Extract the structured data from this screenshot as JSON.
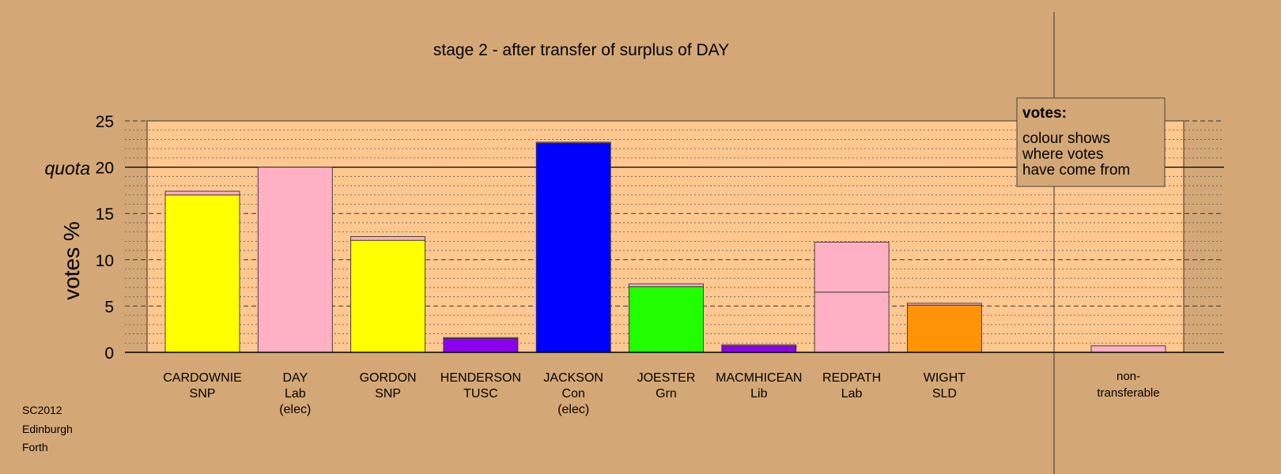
{
  "chart_data": {
    "type": "bar",
    "title": "stage 2 - after transfer of surplus of DAY",
    "ylabel": "votes %",
    "ylim": [
      0,
      25
    ],
    "yticks": [
      0,
      5,
      10,
      15,
      20,
      25
    ],
    "quota": {
      "label": "quota",
      "value": 20
    },
    "grid": true,
    "legend": {
      "title": "votes:",
      "lines": [
        "colour shows",
        "where votes",
        "have come from"
      ],
      "placement": "top-right"
    },
    "candidates": [
      {
        "name": "CARDOWNIE",
        "party": "SNP",
        "note": "",
        "segments": [
          {
            "value": 17.0,
            "color": "#ffff00"
          },
          {
            "value": 0.4,
            "color": "#ffb0c4"
          }
        ]
      },
      {
        "name": "DAY",
        "party": "Lab",
        "note": "(elec)",
        "segments": [
          {
            "value": 20.0,
            "color": "#ffb0c4"
          }
        ]
      },
      {
        "name": "GORDON",
        "party": "SNP",
        "note": "",
        "segments": [
          {
            "value": 12.1,
            "color": "#ffff00"
          },
          {
            "value": 0.4,
            "color": "#ffb0c4"
          }
        ]
      },
      {
        "name": "HENDERSON",
        "party": "TUSC",
        "note": "",
        "segments": [
          {
            "value": 1.5,
            "color": "#8b00ee"
          },
          {
            "value": 0.1,
            "color": "#ffb0c4"
          }
        ]
      },
      {
        "name": "JACKSON",
        "party": "Con",
        "note": "(elec)",
        "segments": [
          {
            "value": 22.6,
            "color": "#0000ff"
          },
          {
            "value": 0.1,
            "color": "#ffb0c4"
          }
        ]
      },
      {
        "name": "JOESTER",
        "party": "Grn",
        "note": "",
        "segments": [
          {
            "value": 7.1,
            "color": "#22ff00"
          },
          {
            "value": 0.3,
            "color": "#ffb0c4"
          }
        ]
      },
      {
        "name": "MACMHICEAN",
        "party": "Lib",
        "note": "",
        "segments": [
          {
            "value": 0.7,
            "color": "#8b00ee"
          },
          {
            "value": 0.1,
            "color": "#ffb0c4"
          }
        ]
      },
      {
        "name": "REDPATH",
        "party": "Lab",
        "note": "",
        "segments": [
          {
            "value": 6.5,
            "color": "#ffb0c4"
          },
          {
            "value": 5.4,
            "color": "#ffb0c4"
          }
        ]
      },
      {
        "name": "WIGHT",
        "party": "SLD",
        "note": "",
        "segments": [
          {
            "value": 5.1,
            "color": "#ff9408"
          },
          {
            "value": 0.2,
            "color": "#ffb0c4"
          }
        ]
      }
    ],
    "nontransferable": {
      "label_line1": "non-",
      "label_line2": "transferable",
      "segments": [
        {
          "value": 0.7,
          "color": "#ffb0c4"
        }
      ]
    }
  },
  "footer": {
    "lines": [
      "SC2012",
      "Edinburgh",
      "Forth"
    ]
  },
  "colors": {
    "background": "#d4a876",
    "plot_area": "#ffc890",
    "pink_transfer": "#ffb0c4"
  }
}
